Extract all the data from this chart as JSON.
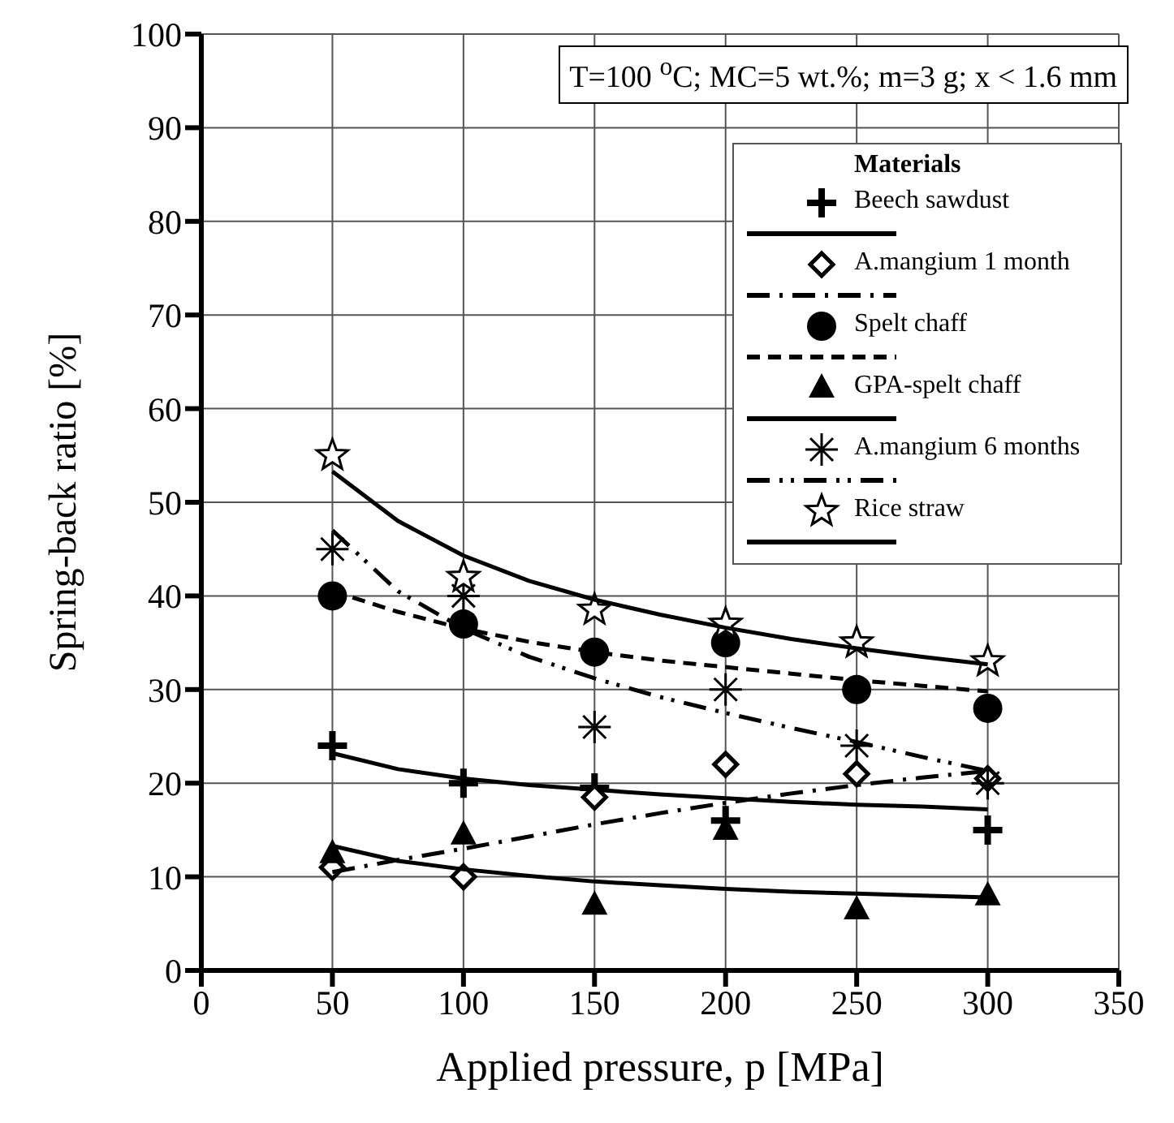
{
  "chart_data": {
    "type": "scatter",
    "xlabel": "Applied pressure, p [MPa]",
    "ylabel": "Spring-back ratio [%]",
    "legend_title": "Materials",
    "annotations": [
      "T=100 $^{o}$C; MC=5 wt.%; m=3 g; x < 1.6 mm"
    ],
    "x": [
      50,
      100,
      150,
      200,
      250,
      300
    ],
    "xlim": [
      0,
      350
    ],
    "xticks": [
      0,
      50,
      100,
      150,
      200,
      250,
      300,
      350
    ],
    "ylim": [
      0,
      100
    ],
    "yticks": [
      0,
      10,
      20,
      30,
      40,
      50,
      60,
      70,
      80,
      90,
      100
    ],
    "grid": true,
    "legend": "top right",
    "series": [
      {
        "name": "Beech sawdust",
        "type": "scatter",
        "marker": "cross",
        "color": "#000000",
        "values": [
          24,
          20,
          19.5,
          16,
          null,
          15
        ]
      },
      {
        "type": "line",
        "marker": "none",
        "line_style": "solid",
        "color": "#000000",
        "x": [
          50,
          75,
          100,
          125,
          150,
          175,
          200,
          225,
          250,
          275,
          300
        ],
        "values": [
          23.2,
          21.5,
          20.5,
          19.8,
          19.3,
          18.8,
          18.4,
          18.0,
          17.7,
          17.5,
          17.2
        ]
      },
      {
        "name": "A.mangium 1 month",
        "type": "scatter",
        "marker": "diamond",
        "color": "#000000",
        "values": [
          11,
          10,
          18.5,
          22,
          21,
          20.5
        ]
      },
      {
        "type": "line",
        "marker": "none",
        "line_style": "dashdot",
        "color": "#000000",
        "x": [
          50,
          75,
          100,
          125,
          150,
          175,
          200,
          225,
          250,
          275,
          300
        ],
        "values": [
          10.5,
          11.8,
          13.0,
          14.3,
          15.6,
          16.8,
          17.9,
          18.9,
          19.8,
          20.6,
          21.3
        ]
      },
      {
        "name": "Spelt chaff",
        "type": "scatter",
        "marker": "circle",
        "color": "#000000",
        "values": [
          40,
          37,
          34,
          35,
          30,
          28
        ]
      },
      {
        "type": "line",
        "marker": "none",
        "line_style": "dashed",
        "color": "#000000",
        "x": [
          50,
          75,
          100,
          125,
          150,
          175,
          200,
          225,
          250,
          275,
          300
        ],
        "values": [
          40.5,
          38.3,
          36.5,
          35.1,
          34.0,
          33.1,
          32.4,
          31.7,
          31.0,
          30.4,
          29.8
        ]
      },
      {
        "name": "GPA-spelt chaff",
        "type": "scatter",
        "marker": "triangle",
        "color": "#000000",
        "values": [
          12.5,
          14.5,
          7,
          15,
          6.5,
          8
        ]
      },
      {
        "type": "line",
        "marker": "none",
        "line_style": "solid",
        "color": "#000000",
        "x": [
          50,
          75,
          100,
          125,
          150,
          175,
          200,
          225,
          250,
          275,
          300
        ],
        "values": [
          13.3,
          11.7,
          10.8,
          10.1,
          9.5,
          9.1,
          8.7,
          8.4,
          8.2,
          8.0,
          7.8
        ]
      },
      {
        "name": "A.mangium 6 months",
        "type": "scatter",
        "color": "#000000",
        "values": [
          45,
          40,
          26,
          30,
          24,
          20
        ]
      },
      {
        "type": "line",
        "marker": "none",
        "line_style": "dashdotdot",
        "color": "#000000",
        "x": [
          50,
          75,
          100,
          125,
          150,
          175,
          200,
          225,
          250,
          275,
          300
        ],
        "values": [
          47.0,
          40.5,
          36.5,
          33.5,
          31.2,
          29.2,
          27.5,
          25.9,
          24.4,
          22.8,
          21.3
        ]
      },
      {
        "name": "Rice straw",
        "type": "scatter",
        "marker": "star",
        "color": "#000000",
        "values": [
          55,
          42,
          38.5,
          37,
          35,
          33
        ]
      },
      {
        "type": "line",
        "marker": "none",
        "line_style": "solid",
        "color": "#000000",
        "x": [
          50,
          75,
          100,
          125,
          150,
          175,
          200,
          225,
          250,
          275,
          300
        ],
        "values": [
          53.3,
          48.0,
          44.3,
          41.6,
          39.6,
          38.0,
          36.6,
          35.4,
          34.4,
          33.5,
          32.7
        ]
      }
    ]
  }
}
